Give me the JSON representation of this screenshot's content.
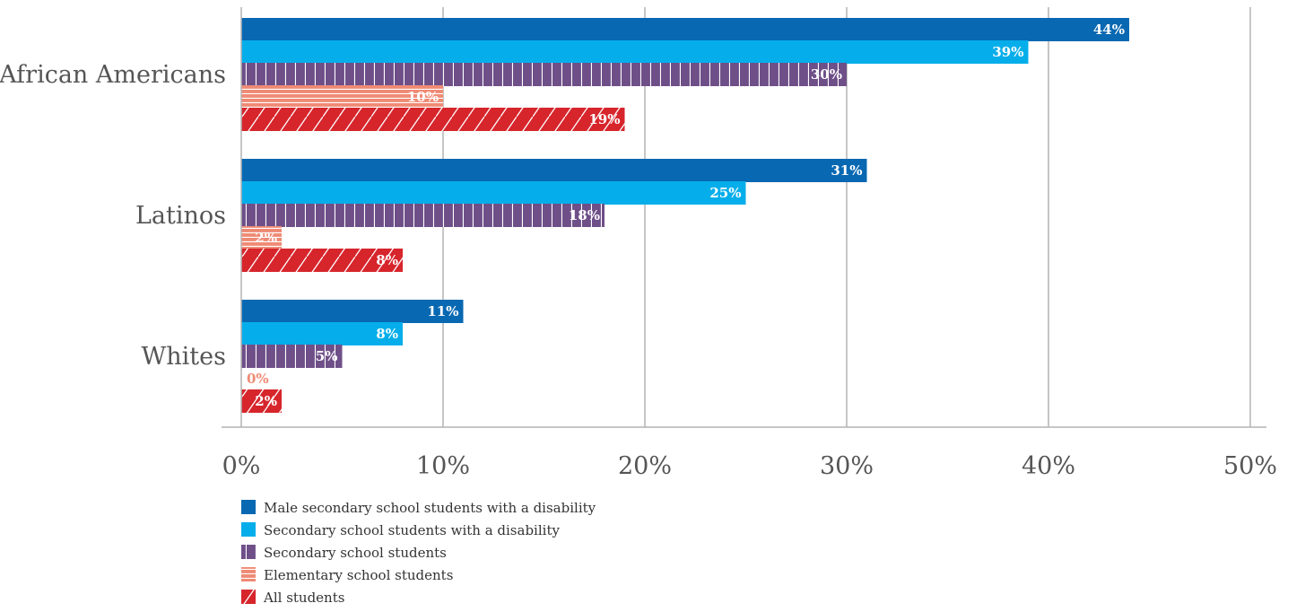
{
  "chart_data": {
    "type": "bar",
    "orientation": "horizontal",
    "categories": [
      "African Americans",
      "Latinos",
      "Whites"
    ],
    "series": [
      {
        "name": "Male secondary school students with a disability",
        "values": [
          44,
          31,
          11
        ],
        "color": "#0868b2",
        "pattern": "solid"
      },
      {
        "name": "Secondary school students with a disability",
        "values": [
          39,
          25,
          8
        ],
        "color": "#05aeea",
        "pattern": "solid"
      },
      {
        "name": "Secondary school students",
        "values": [
          30,
          18,
          5
        ],
        "color": "#6e4f88",
        "pattern": "vertical-stripes"
      },
      {
        "name": "Elementary school students",
        "values": [
          10,
          2,
          0
        ],
        "color": "#ef8a75",
        "pattern": "horizontal-stripes"
      },
      {
        "name": "All students",
        "values": [
          19,
          8,
          2
        ],
        "color": "#d7252c",
        "pattern": "diagonal-stripes"
      }
    ],
    "data_labels": [
      [
        "44%",
        "31%",
        "11%"
      ],
      [
        "39%",
        "25%",
        "8%"
      ],
      [
        "30%",
        "18%",
        "5%"
      ],
      [
        "10%",
        "2%",
        "0%"
      ],
      [
        "19%",
        "8%",
        "2%"
      ]
    ],
    "xticks": [
      "0%",
      "10%",
      "20%",
      "30%",
      "40%",
      "50%"
    ],
    "xlim": [
      0,
      50
    ],
    "grid": true,
    "legend_position": "bottom-left",
    "title": "",
    "xlabel": "",
    "ylabel": ""
  }
}
